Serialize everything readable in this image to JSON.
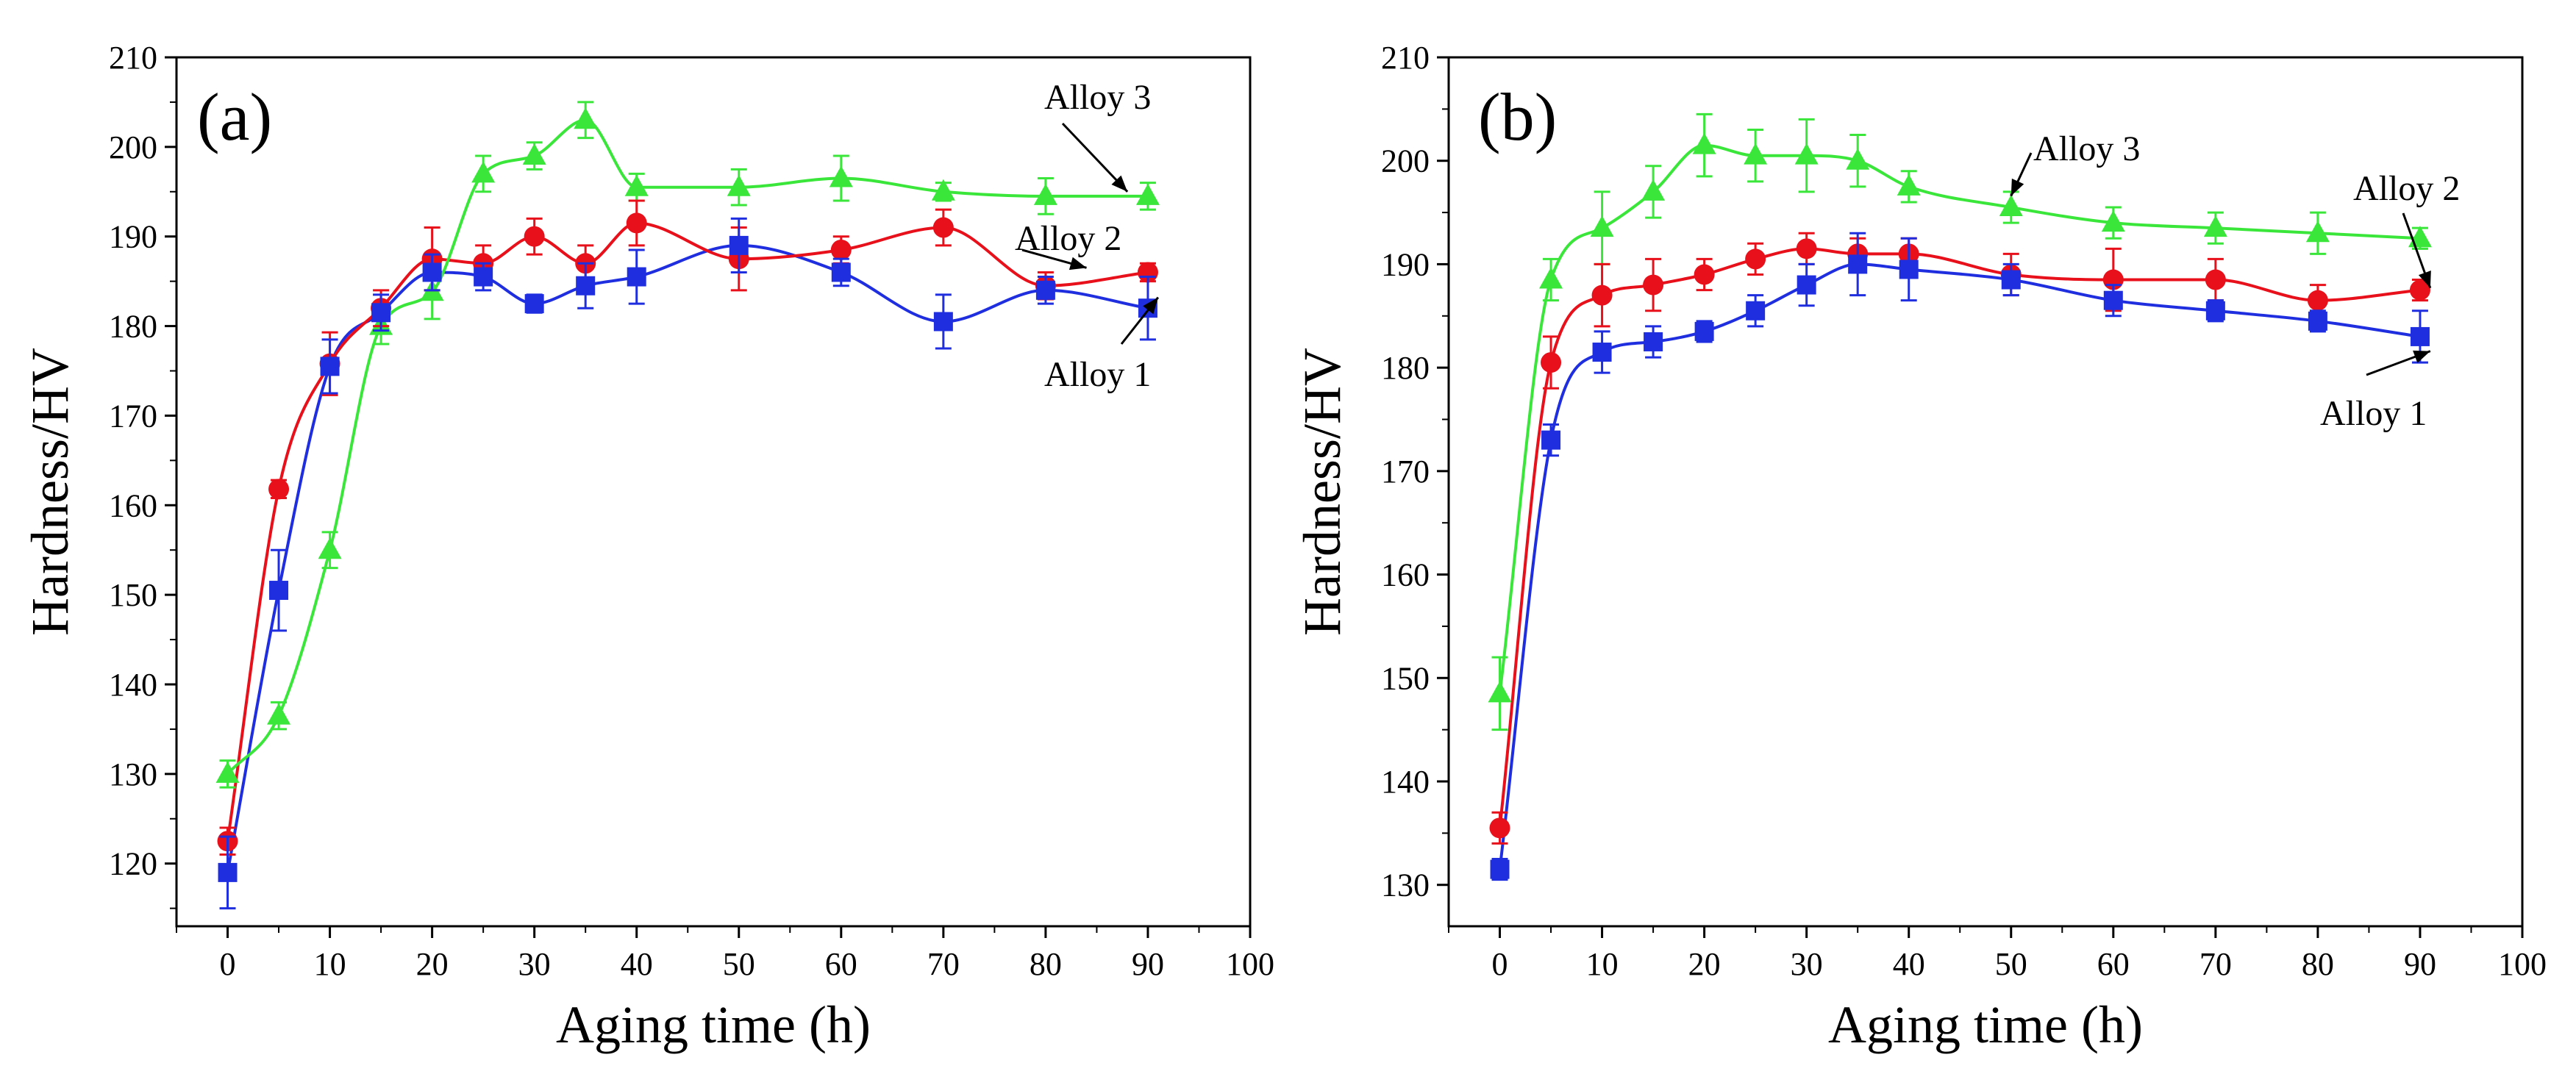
{
  "chart_data": [
    {
      "type": "line",
      "panel_label": "(a)",
      "xlabel": "Aging time (h)",
      "ylabel": "Hardness/HV",
      "xlim": [
        -5,
        100
      ],
      "ylim": [
        113,
        210
      ],
      "xticks": [
        0,
        10,
        20,
        30,
        40,
        50,
        60,
        70,
        80,
        90,
        100
      ],
      "yticks": [
        120,
        130,
        140,
        150,
        160,
        170,
        180,
        190,
        200,
        210
      ],
      "x": [
        0,
        5,
        10,
        15,
        20,
        25,
        30,
        35,
        40,
        50,
        60,
        70,
        80,
        90
      ],
      "series": [
        {
          "name": "Alloy 1",
          "color": "#1f2fe0",
          "marker": "square",
          "values": [
            119,
            150.5,
            175.5,
            181.5,
            186,
            185.5,
            182.5,
            184.5,
            185.5,
            189,
            186,
            180.5,
            184,
            182
          ],
          "errors": [
            4,
            4.5,
            3,
            2,
            2,
            1.5,
            1,
            2.5,
            3,
            3,
            1.5,
            3,
            1.5,
            3.5
          ]
        },
        {
          "name": "Alloy 2",
          "color": "#e8101a",
          "marker": "circle",
          "values": [
            122.5,
            161.8,
            175.8,
            182,
            187.5,
            187,
            190,
            187,
            191.5,
            187.5,
            188.5,
            191,
            184.5,
            186
          ],
          "errors": [
            1.5,
            1,
            3.5,
            2,
            3.5,
            2,
            2,
            2,
            2.5,
            3.5,
            1.5,
            2,
            1.5,
            1
          ]
        },
        {
          "name": "Alloy 3",
          "color": "#3be63b",
          "marker": "triangle",
          "values": [
            130,
            136.5,
            155,
            180,
            183.8,
            197,
            199,
            203,
            195.5,
            195.5,
            196.5,
            195,
            194.5,
            194.5
          ],
          "errors": [
            1.5,
            1.5,
            2,
            2,
            3,
            2,
            1.5,
            2,
            1.5,
            2,
            2.5,
            1,
            2,
            1.5
          ]
        }
      ],
      "annotations": [
        "Alloy 3",
        "Alloy 2",
        "Alloy 1"
      ]
    },
    {
      "type": "line",
      "panel_label": "(b)",
      "xlabel": "Aging time (h)",
      "ylabel": "Hardness/HV",
      "xlim": [
        -5,
        100
      ],
      "ylim": [
        126,
        210
      ],
      "xticks": [
        0,
        10,
        20,
        30,
        40,
        50,
        60,
        70,
        80,
        90,
        100
      ],
      "yticks": [
        130,
        140,
        150,
        160,
        170,
        180,
        190,
        200,
        210
      ],
      "x": [
        0,
        5,
        10,
        15,
        20,
        25,
        30,
        35,
        40,
        50,
        60,
        70,
        80,
        90
      ],
      "series": [
        {
          "name": "Alloy 1",
          "color": "#1f2fe0",
          "marker": "square",
          "values": [
            131.5,
            173,
            181.5,
            182.5,
            183.5,
            185.5,
            188,
            190,
            189.5,
            188.5,
            186.5,
            185.5,
            184.5,
            183
          ],
          "errors": [
            1,
            1.5,
            2,
            1.5,
            1,
            1.5,
            2,
            3,
            3,
            1.5,
            1.5,
            1,
            1,
            2.5
          ]
        },
        {
          "name": "Alloy 2",
          "color": "#e8101a",
          "marker": "circle",
          "values": [
            135.5,
            180.5,
            187,
            188,
            189,
            190.5,
            191.5,
            191,
            191,
            189,
            188.5,
            188.5,
            186.5,
            187.5
          ],
          "errors": [
            1.5,
            2.5,
            3,
            2.5,
            1.5,
            1.5,
            1.5,
            1.5,
            1.5,
            2,
            3,
            2,
            1.5,
            1
          ]
        },
        {
          "name": "Alloy 3",
          "color": "#3be63b",
          "marker": "triangle",
          "values": [
            148.5,
            188.5,
            193.5,
            197,
            201.5,
            200.5,
            200.5,
            200,
            197.5,
            195.5,
            194,
            193.5,
            193,
            192.5
          ],
          "errors": [
            3.5,
            2,
            3.5,
            2.5,
            3,
            2.5,
            3.5,
            2.5,
            1.5,
            1.5,
            1.5,
            1.5,
            2,
            1
          ]
        }
      ],
      "annotations": [
        "Alloy 3",
        "Alloy 2",
        "Alloy 1"
      ]
    }
  ]
}
